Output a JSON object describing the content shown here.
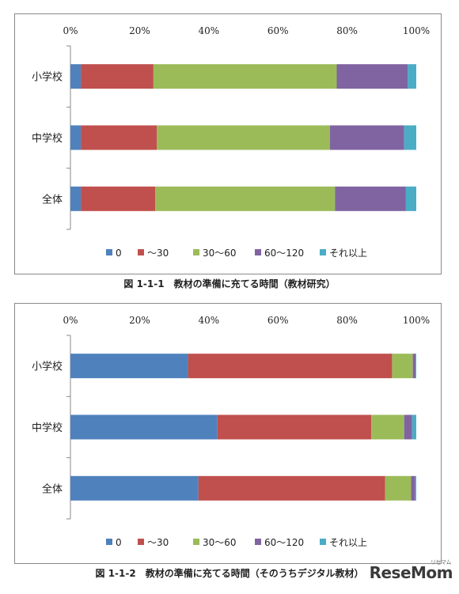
{
  "chart_data": [
    {
      "type": "bar",
      "orientation": "horizontal",
      "stacked": true,
      "categories": [
        "小学校",
        "中学校",
        "全体"
      ],
      "x_ticks": [
        "0%",
        "20%",
        "40%",
        "60%",
        "80%",
        "100%"
      ],
      "xlim": [
        0,
        100
      ],
      "legend_position": "bottom",
      "series": [
        {
          "name": "0",
          "color": "#4f81bd",
          "values": [
            3,
            3,
            3
          ]
        },
        {
          "name": "～30",
          "color": "#c0504d",
          "values": [
            21,
            22,
            21.5
          ]
        },
        {
          "name": "30～60",
          "color": "#9bbb59",
          "values": [
            53,
            50,
            52
          ]
        },
        {
          "name": "60～120",
          "color": "#8064a2",
          "values": [
            20.5,
            21.5,
            20.5
          ]
        },
        {
          "name": "それ以上",
          "color": "#4bacc6",
          "values": [
            2.5,
            3.5,
            3
          ]
        }
      ],
      "caption": "図 1-1-1　教材の準備に充てる時間（教材研究）"
    },
    {
      "type": "bar",
      "orientation": "horizontal",
      "stacked": true,
      "categories": [
        "小学校",
        "中学校",
        "全体"
      ],
      "x_ticks": [
        "0%",
        "20%",
        "40%",
        "60%",
        "80%",
        "100%"
      ],
      "xlim": [
        0,
        100
      ],
      "legend_position": "bottom",
      "series": [
        {
          "name": "0",
          "color": "#4f81bd",
          "values": [
            34,
            42.5,
            37
          ]
        },
        {
          "name": "～30",
          "color": "#c0504d",
          "values": [
            59,
            44.5,
            54
          ]
        },
        {
          "name": "30～60",
          "color": "#9bbb59",
          "values": [
            6,
            9.5,
            7.5
          ]
        },
        {
          "name": "60～120",
          "color": "#8064a2",
          "values": [
            0.8,
            2.3,
            1.2
          ]
        },
        {
          "name": "それ以上",
          "color": "#4bacc6",
          "values": [
            0.2,
            1.2,
            0.3
          ]
        }
      ],
      "caption": "図 1-1-2　教材の準備に充てる時間（そのうちデジタル教材）"
    }
  ],
  "watermark": {
    "text": "ReseMom",
    "sub": "リセマム"
  }
}
